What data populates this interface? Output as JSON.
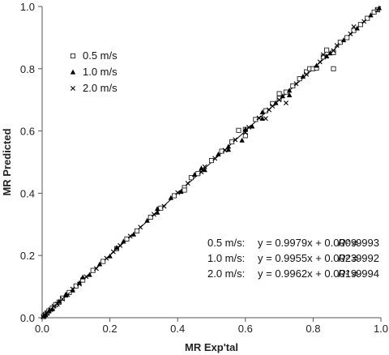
{
  "chart_data": {
    "type": "scatter",
    "xlabel": "MR Exp'tal",
    "ylabel": "MR Predicted",
    "xlim": [
      0,
      1
    ],
    "ylim": [
      0,
      1
    ],
    "x_ticks": [
      "0.0",
      "0.2",
      "0.4",
      "0.6",
      "0.8",
      "1.0"
    ],
    "y_ticks": [
      "0.0",
      "0.2",
      "0.4",
      "0.6",
      "0.8",
      "1.0"
    ],
    "grid": false,
    "legend_position": "top-left",
    "fit_line": {
      "from": [
        0,
        0
      ],
      "to": [
        1,
        1
      ]
    },
    "series": [
      {
        "name": "0.5 m/s",
        "marker": "open-square",
        "points": [
          [
            0.005,
            0.004
          ],
          [
            0.01,
            0.011
          ],
          [
            0.015,
            0.016
          ],
          [
            0.02,
            0.022
          ],
          [
            0.03,
            0.031
          ],
          [
            0.04,
            0.042
          ],
          [
            0.05,
            0.05
          ],
          [
            0.06,
            0.063
          ],
          [
            0.08,
            0.081
          ],
          [
            0.1,
            0.102
          ],
          [
            0.12,
            0.121
          ],
          [
            0.15,
            0.152
          ],
          [
            0.18,
            0.181
          ],
          [
            0.22,
            0.222
          ],
          [
            0.25,
            0.253
          ],
          [
            0.28,
            0.279
          ],
          [
            0.32,
            0.323
          ],
          [
            0.35,
            0.352
          ],
          [
            0.39,
            0.392
          ],
          [
            0.42,
            0.418
          ],
          [
            0.44,
            0.45
          ],
          [
            0.46,
            0.463
          ],
          [
            0.5,
            0.505
          ],
          [
            0.53,
            0.535
          ],
          [
            0.56,
            0.565
          ],
          [
            0.58,
            0.602
          ],
          [
            0.6,
            0.605
          ],
          [
            0.63,
            0.637
          ],
          [
            0.66,
            0.665
          ],
          [
            0.68,
            0.688
          ],
          [
            0.7,
            0.705
          ],
          [
            0.72,
            0.725
          ],
          [
            0.74,
            0.745
          ],
          [
            0.76,
            0.768
          ],
          [
            0.78,
            0.79
          ],
          [
            0.79,
            0.8
          ],
          [
            0.8,
            0.8
          ],
          [
            0.81,
            0.802
          ],
          [
            0.83,
            0.838
          ],
          [
            0.84,
            0.86
          ],
          [
            0.86,
            0.852
          ],
          [
            0.88,
            0.885
          ],
          [
            0.9,
            0.9
          ],
          [
            0.92,
            0.923
          ],
          [
            0.94,
            0.942
          ],
          [
            0.96,
            0.962
          ],
          [
            0.98,
            0.982
          ],
          [
            0.99,
            0.99
          ],
          [
            0.7,
            0.72
          ],
          [
            0.86,
            0.8
          ],
          [
            0.6,
            0.585
          ],
          [
            0.42,
            0.41
          ]
        ]
      },
      {
        "name": "1.0 m/s",
        "marker": "filled-triangle",
        "points": [
          [
            0.005,
            0.006
          ],
          [
            0.01,
            0.009
          ],
          [
            0.02,
            0.021
          ],
          [
            0.03,
            0.028
          ],
          [
            0.05,
            0.052
          ],
          [
            0.07,
            0.072
          ],
          [
            0.09,
            0.088
          ],
          [
            0.11,
            0.112
          ],
          [
            0.14,
            0.138
          ],
          [
            0.17,
            0.172
          ],
          [
            0.2,
            0.198
          ],
          [
            0.24,
            0.245
          ],
          [
            0.27,
            0.268
          ],
          [
            0.31,
            0.312
          ],
          [
            0.34,
            0.338
          ],
          [
            0.38,
            0.385
          ],
          [
            0.41,
            0.405
          ],
          [
            0.45,
            0.46
          ],
          [
            0.48,
            0.475
          ],
          [
            0.52,
            0.525
          ],
          [
            0.55,
            0.55
          ],
          [
            0.6,
            0.605
          ],
          [
            0.62,
            0.615
          ],
          [
            0.65,
            0.66
          ],
          [
            0.69,
            0.69
          ],
          [
            0.71,
            0.712
          ],
          [
            0.73,
            0.73
          ],
          [
            0.77,
            0.775
          ],
          [
            0.81,
            0.81
          ],
          [
            0.85,
            0.85
          ],
          [
            0.89,
            0.892
          ],
          [
            0.93,
            0.93
          ],
          [
            0.97,
            0.972
          ],
          [
            0.995,
            0.995
          ],
          [
            0.59,
            0.57
          ],
          [
            0.73,
            0.715
          ],
          [
            0.55,
            0.54
          ],
          [
            0.47,
            0.48
          ],
          [
            0.34,
            0.35
          ],
          [
            0.22,
            0.225
          ],
          [
            0.12,
            0.13
          ],
          [
            0.07,
            0.075
          ],
          [
            0.84,
            0.84
          ],
          [
            0.65,
            0.64
          ]
        ]
      },
      {
        "name": "2.0 m/s",
        "marker": "x-cross",
        "points": [
          [
            0.003,
            0.003
          ],
          [
            0.008,
            0.009
          ],
          [
            0.015,
            0.014
          ],
          [
            0.025,
            0.026
          ],
          [
            0.035,
            0.037
          ],
          [
            0.045,
            0.044
          ],
          [
            0.06,
            0.06
          ],
          [
            0.075,
            0.074
          ],
          [
            0.09,
            0.092
          ],
          [
            0.11,
            0.108
          ],
          [
            0.13,
            0.132
          ],
          [
            0.16,
            0.158
          ],
          [
            0.19,
            0.191
          ],
          [
            0.21,
            0.212
          ],
          [
            0.23,
            0.232
          ],
          [
            0.26,
            0.262
          ],
          [
            0.29,
            0.291
          ],
          [
            0.33,
            0.332
          ],
          [
            0.36,
            0.358
          ],
          [
            0.4,
            0.402
          ],
          [
            0.43,
            0.432
          ],
          [
            0.47,
            0.468
          ],
          [
            0.51,
            0.512
          ],
          [
            0.54,
            0.538
          ],
          [
            0.57,
            0.572
          ],
          [
            0.61,
            0.612
          ],
          [
            0.64,
            0.642
          ],
          [
            0.67,
            0.668
          ],
          [
            0.7,
            0.7
          ],
          [
            0.72,
            0.69
          ],
          [
            0.75,
            0.752
          ],
          [
            0.78,
            0.782
          ],
          [
            0.82,
            0.822
          ],
          [
            0.86,
            0.858
          ],
          [
            0.87,
            0.875
          ],
          [
            0.91,
            0.912
          ],
          [
            0.95,
            0.952
          ],
          [
            0.99,
            0.988
          ],
          [
            0.68,
            0.68
          ],
          [
            0.66,
            0.64
          ],
          [
            0.83,
            0.845
          ],
          [
            0.48,
            0.485
          ],
          [
            0.6,
            0.595
          ],
          [
            0.92,
            0.935
          ]
        ]
      }
    ],
    "annotations": [
      {
        "series": "0.5 m/s",
        "equation": "y = 0.9979x + 0.0009",
        "r2_label": "R² =",
        "r2_value": ".9993"
      },
      {
        "series": "1.0 m/s",
        "equation": "y = 0.9955x + 0.0023",
        "r2_label": "R² =",
        "r2_value": ".9992"
      },
      {
        "series": "2.0 m/s",
        "equation": "y = 0.9962x + 0.0019",
        "r2_label": "R² =",
        "r2_value": ".9994"
      }
    ]
  }
}
